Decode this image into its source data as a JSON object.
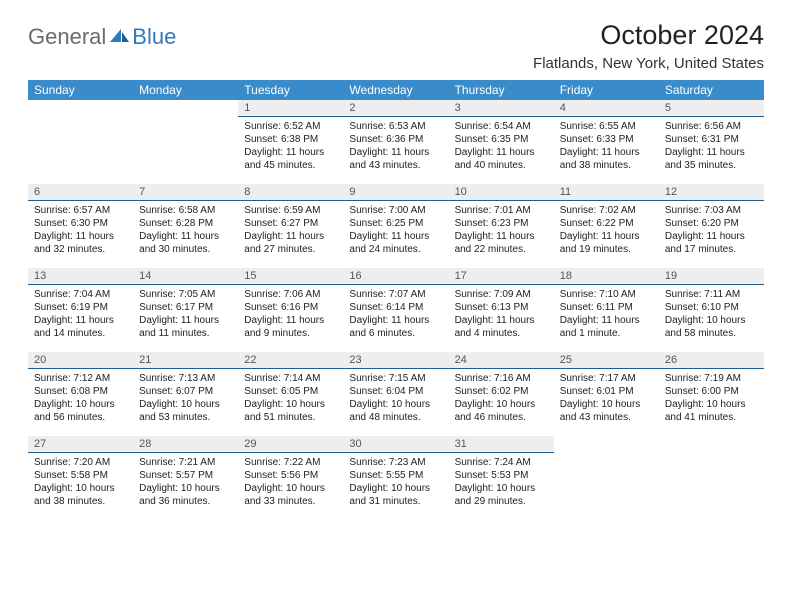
{
  "brand": {
    "word1": "General",
    "word2": "Blue"
  },
  "title": "October 2024",
  "location": "Flatlands, New York, United States",
  "colors": {
    "header_bg": "#3a8bc9",
    "header_text": "#ffffff",
    "daynum_bg": "#eeeeee",
    "daynum_border": "#1f5d8f",
    "logo_gray": "#6b6b6b",
    "logo_blue": "#2f7ac0"
  },
  "weekdays": [
    "Sunday",
    "Monday",
    "Tuesday",
    "Wednesday",
    "Thursday",
    "Friday",
    "Saturday"
  ],
  "weeks": [
    [
      null,
      null,
      {
        "n": "1",
        "sr": "Sunrise: 6:52 AM",
        "ss": "Sunset: 6:38 PM",
        "dl": "Daylight: 11 hours and 45 minutes."
      },
      {
        "n": "2",
        "sr": "Sunrise: 6:53 AM",
        "ss": "Sunset: 6:36 PM",
        "dl": "Daylight: 11 hours and 43 minutes."
      },
      {
        "n": "3",
        "sr": "Sunrise: 6:54 AM",
        "ss": "Sunset: 6:35 PM",
        "dl": "Daylight: 11 hours and 40 minutes."
      },
      {
        "n": "4",
        "sr": "Sunrise: 6:55 AM",
        "ss": "Sunset: 6:33 PM",
        "dl": "Daylight: 11 hours and 38 minutes."
      },
      {
        "n": "5",
        "sr": "Sunrise: 6:56 AM",
        "ss": "Sunset: 6:31 PM",
        "dl": "Daylight: 11 hours and 35 minutes."
      }
    ],
    [
      {
        "n": "6",
        "sr": "Sunrise: 6:57 AM",
        "ss": "Sunset: 6:30 PM",
        "dl": "Daylight: 11 hours and 32 minutes."
      },
      {
        "n": "7",
        "sr": "Sunrise: 6:58 AM",
        "ss": "Sunset: 6:28 PM",
        "dl": "Daylight: 11 hours and 30 minutes."
      },
      {
        "n": "8",
        "sr": "Sunrise: 6:59 AM",
        "ss": "Sunset: 6:27 PM",
        "dl": "Daylight: 11 hours and 27 minutes."
      },
      {
        "n": "9",
        "sr": "Sunrise: 7:00 AM",
        "ss": "Sunset: 6:25 PM",
        "dl": "Daylight: 11 hours and 24 minutes."
      },
      {
        "n": "10",
        "sr": "Sunrise: 7:01 AM",
        "ss": "Sunset: 6:23 PM",
        "dl": "Daylight: 11 hours and 22 minutes."
      },
      {
        "n": "11",
        "sr": "Sunrise: 7:02 AM",
        "ss": "Sunset: 6:22 PM",
        "dl": "Daylight: 11 hours and 19 minutes."
      },
      {
        "n": "12",
        "sr": "Sunrise: 7:03 AM",
        "ss": "Sunset: 6:20 PM",
        "dl": "Daylight: 11 hours and 17 minutes."
      }
    ],
    [
      {
        "n": "13",
        "sr": "Sunrise: 7:04 AM",
        "ss": "Sunset: 6:19 PM",
        "dl": "Daylight: 11 hours and 14 minutes."
      },
      {
        "n": "14",
        "sr": "Sunrise: 7:05 AM",
        "ss": "Sunset: 6:17 PM",
        "dl": "Daylight: 11 hours and 11 minutes."
      },
      {
        "n": "15",
        "sr": "Sunrise: 7:06 AM",
        "ss": "Sunset: 6:16 PM",
        "dl": "Daylight: 11 hours and 9 minutes."
      },
      {
        "n": "16",
        "sr": "Sunrise: 7:07 AM",
        "ss": "Sunset: 6:14 PM",
        "dl": "Daylight: 11 hours and 6 minutes."
      },
      {
        "n": "17",
        "sr": "Sunrise: 7:09 AM",
        "ss": "Sunset: 6:13 PM",
        "dl": "Daylight: 11 hours and 4 minutes."
      },
      {
        "n": "18",
        "sr": "Sunrise: 7:10 AM",
        "ss": "Sunset: 6:11 PM",
        "dl": "Daylight: 11 hours and 1 minute."
      },
      {
        "n": "19",
        "sr": "Sunrise: 7:11 AM",
        "ss": "Sunset: 6:10 PM",
        "dl": "Daylight: 10 hours and 58 minutes."
      }
    ],
    [
      {
        "n": "20",
        "sr": "Sunrise: 7:12 AM",
        "ss": "Sunset: 6:08 PM",
        "dl": "Daylight: 10 hours and 56 minutes."
      },
      {
        "n": "21",
        "sr": "Sunrise: 7:13 AM",
        "ss": "Sunset: 6:07 PM",
        "dl": "Daylight: 10 hours and 53 minutes."
      },
      {
        "n": "22",
        "sr": "Sunrise: 7:14 AM",
        "ss": "Sunset: 6:05 PM",
        "dl": "Daylight: 10 hours and 51 minutes."
      },
      {
        "n": "23",
        "sr": "Sunrise: 7:15 AM",
        "ss": "Sunset: 6:04 PM",
        "dl": "Daylight: 10 hours and 48 minutes."
      },
      {
        "n": "24",
        "sr": "Sunrise: 7:16 AM",
        "ss": "Sunset: 6:02 PM",
        "dl": "Daylight: 10 hours and 46 minutes."
      },
      {
        "n": "25",
        "sr": "Sunrise: 7:17 AM",
        "ss": "Sunset: 6:01 PM",
        "dl": "Daylight: 10 hours and 43 minutes."
      },
      {
        "n": "26",
        "sr": "Sunrise: 7:19 AM",
        "ss": "Sunset: 6:00 PM",
        "dl": "Daylight: 10 hours and 41 minutes."
      }
    ],
    [
      {
        "n": "27",
        "sr": "Sunrise: 7:20 AM",
        "ss": "Sunset: 5:58 PM",
        "dl": "Daylight: 10 hours and 38 minutes."
      },
      {
        "n": "28",
        "sr": "Sunrise: 7:21 AM",
        "ss": "Sunset: 5:57 PM",
        "dl": "Daylight: 10 hours and 36 minutes."
      },
      {
        "n": "29",
        "sr": "Sunrise: 7:22 AM",
        "ss": "Sunset: 5:56 PM",
        "dl": "Daylight: 10 hours and 33 minutes."
      },
      {
        "n": "30",
        "sr": "Sunrise: 7:23 AM",
        "ss": "Sunset: 5:55 PM",
        "dl": "Daylight: 10 hours and 31 minutes."
      },
      {
        "n": "31",
        "sr": "Sunrise: 7:24 AM",
        "ss": "Sunset: 5:53 PM",
        "dl": "Daylight: 10 hours and 29 minutes."
      },
      null,
      null
    ]
  ]
}
